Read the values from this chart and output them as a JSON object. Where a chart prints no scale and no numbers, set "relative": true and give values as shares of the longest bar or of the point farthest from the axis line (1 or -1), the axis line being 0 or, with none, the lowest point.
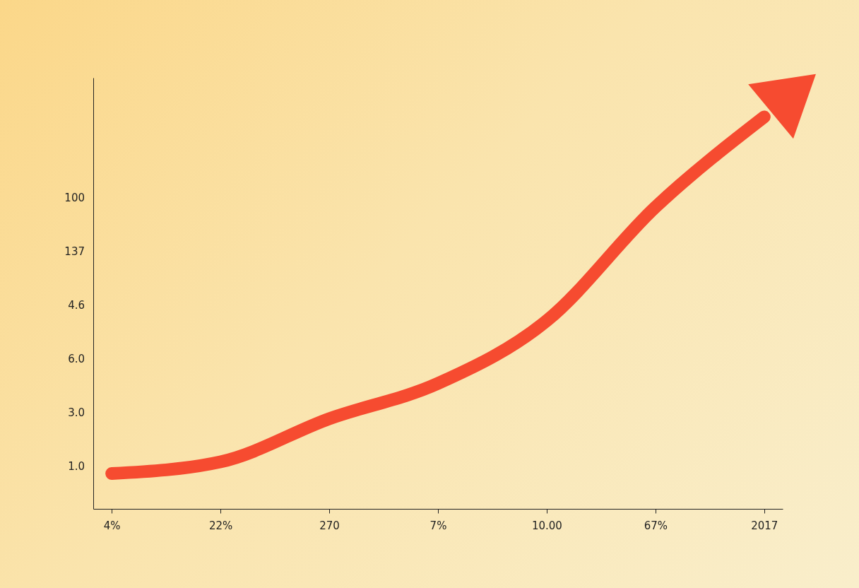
{
  "chart_data": {
    "type": "line",
    "relative": true,
    "categories": [
      "4%",
      "22%",
      "270",
      "7%",
      "10.00",
      "67%",
      "2017"
    ],
    "series": [
      {
        "color": "#f64b30",
        "values": [
          0.09,
          0.12,
          0.23,
          0.32,
          0.48,
          0.77,
          1
        ]
      }
    ],
    "annotations": [
      "100",
      "137",
      "4.6",
      "6.0",
      "3.0",
      "1.0"
    ]
  }
}
